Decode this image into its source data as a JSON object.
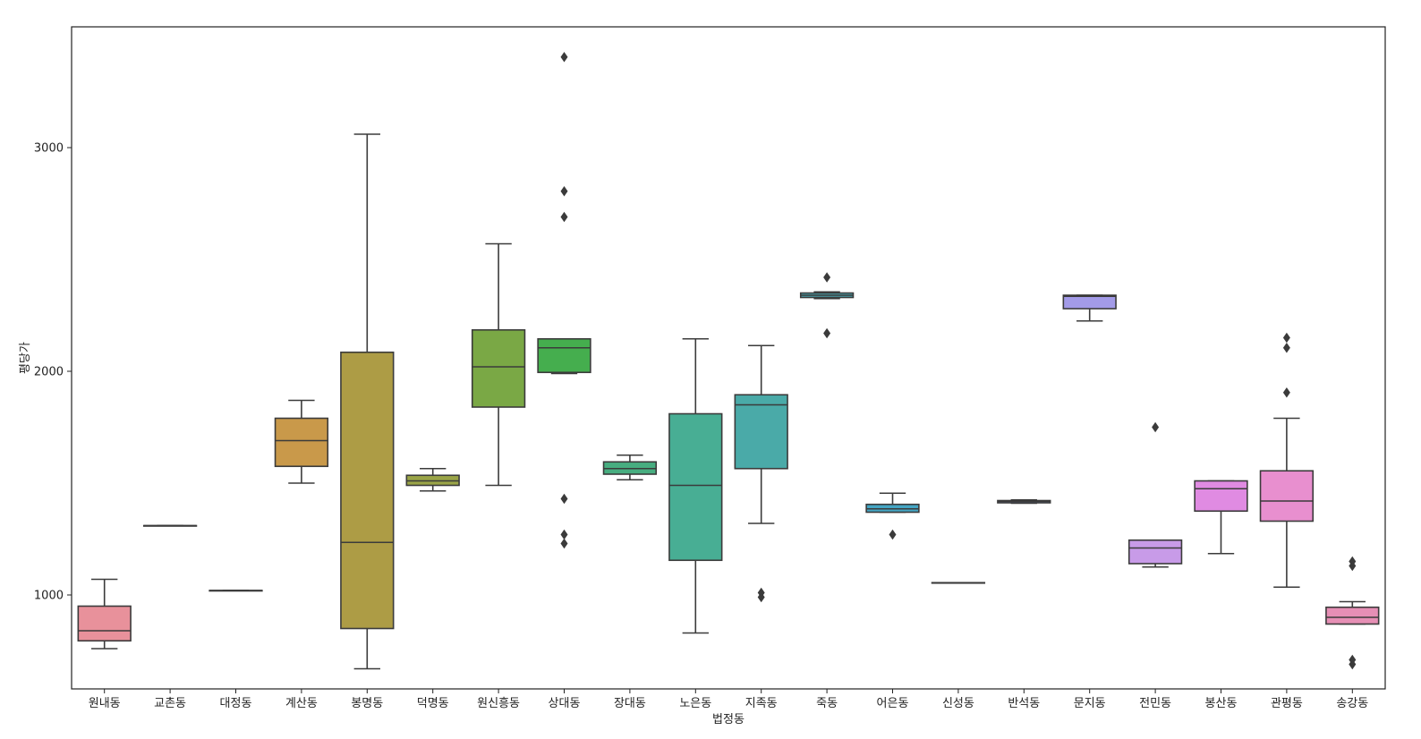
{
  "chart_data": {
    "type": "box",
    "title": "",
    "xlabel": "법정동",
    "ylabel": "평당가",
    "ylim": [
      580,
      3540
    ],
    "yticks": [
      1000,
      2000,
      3000
    ],
    "grid": false,
    "legend": "none",
    "categories": [
      "원내동",
      "교촌동",
      "대정동",
      "계산동",
      "봉명동",
      "덕명동",
      "원신흥동",
      "상대동",
      "장대동",
      "노은동",
      "지족동",
      "죽동",
      "어은동",
      "신성동",
      "반석동",
      "문지동",
      "전민동",
      "봉산동",
      "관평동",
      "송강동"
    ],
    "boxes": [
      {
        "name": "원내동",
        "whislo": 760,
        "q1": 795,
        "med": 840,
        "q3": 950,
        "whishi": 1070,
        "fliers": [],
        "color": "#e8919b"
      },
      {
        "name": "교촌동",
        "whislo": 1310,
        "q1": 1310,
        "med": 1310,
        "q3": 1310,
        "whishi": 1310,
        "fliers": [],
        "color": "#e39a72"
      },
      {
        "name": "대정동",
        "whislo": 1020,
        "q1": 1020,
        "med": 1020,
        "q3": 1020,
        "whishi": 1020,
        "fliers": [],
        "color": "#d99d59"
      },
      {
        "name": "계산동",
        "whislo": 1500,
        "q1": 1575,
        "med": 1690,
        "q3": 1790,
        "whishi": 1870,
        "fliers": [],
        "color": "#c9994a"
      },
      {
        "name": "봉명동",
        "whislo": 670,
        "q1": 850,
        "med": 1235,
        "q3": 2085,
        "whishi": 3060,
        "fliers": [],
        "color": "#ad9c45"
      },
      {
        "name": "덕명동",
        "whislo": 1465,
        "q1": 1490,
        "med": 1510,
        "q3": 1535,
        "whishi": 1565,
        "fliers": [],
        "color": "#9aa447"
      },
      {
        "name": "원신흥동",
        "whislo": 1490,
        "q1": 1840,
        "med": 2020,
        "q3": 2185,
        "whishi": 2570,
        "fliers": [],
        "color": "#7aa845"
      },
      {
        "name": "상대동",
        "whislo": 1990,
        "q1": 1995,
        "med": 2105,
        "q3": 2145,
        "whishi": 2145,
        "fliers": [
          1230,
          1270,
          1430,
          2690,
          2805,
          3405
        ],
        "color": "#45ae4e"
      },
      {
        "name": "장대동",
        "whislo": 1515,
        "q1": 1540,
        "med": 1565,
        "q3": 1595,
        "whishi": 1625,
        "fliers": [],
        "color": "#47ad80"
      },
      {
        "name": "노은동",
        "whislo": 830,
        "q1": 1155,
        "med": 1490,
        "q3": 1810,
        "whishi": 2145,
        "fliers": [],
        "color": "#48ae94"
      },
      {
        "name": "지족동",
        "whislo": 1320,
        "q1": 1565,
        "med": 1850,
        "q3": 1895,
        "whishi": 2115,
        "fliers": [
          990,
          1010
        ],
        "color": "#4aaaa8"
      },
      {
        "name": "죽동",
        "whislo": 2325,
        "q1": 2330,
        "med": 2340,
        "q3": 2350,
        "whishi": 2355,
        "fliers": [
          2170,
          2420
        ],
        "color": "#4aa8b2"
      },
      {
        "name": "어은동",
        "whislo": 1370,
        "q1": 1370,
        "med": 1385,
        "q3": 1405,
        "whishi": 1455,
        "fliers": [
          1270
        ],
        "color": "#44a5c3"
      },
      {
        "name": "신성동",
        "whislo": 1055,
        "q1": 1055,
        "med": 1055,
        "q3": 1055,
        "whishi": 1055,
        "fliers": [],
        "color": "#55a0d4"
      },
      {
        "name": "반석동",
        "whislo": 1410,
        "q1": 1412,
        "med": 1418,
        "q3": 1422,
        "whishi": 1425,
        "fliers": [],
        "color": "#7d9fe0"
      },
      {
        "name": "문지동",
        "whislo": 2225,
        "q1": 2280,
        "med": 2335,
        "q3": 2340,
        "whishi": 2340,
        "fliers": [],
        "color": "#a39be8"
      },
      {
        "name": "전민동",
        "whislo": 1125,
        "q1": 1140,
        "med": 1210,
        "q3": 1245,
        "whishi": 1245,
        "fliers": [
          1750
        ],
        "color": "#c89be8"
      },
      {
        "name": "봉산동",
        "whislo": 1185,
        "q1": 1375,
        "med": 1475,
        "q3": 1510,
        "whishi": 1510,
        "fliers": [],
        "color": "#e08be2"
      },
      {
        "name": "관평동",
        "whislo": 1035,
        "q1": 1330,
        "med": 1420,
        "q3": 1555,
        "whishi": 1790,
        "fliers": [
          1905,
          2105,
          2150
        ],
        "color": "#e88fcf"
      },
      {
        "name": "송강동",
        "whislo": 870,
        "q1": 870,
        "med": 900,
        "q3": 945,
        "whishi": 970,
        "fliers": [
          690,
          710,
          1130,
          1150
        ],
        "color": "#e68fb5"
      }
    ]
  }
}
